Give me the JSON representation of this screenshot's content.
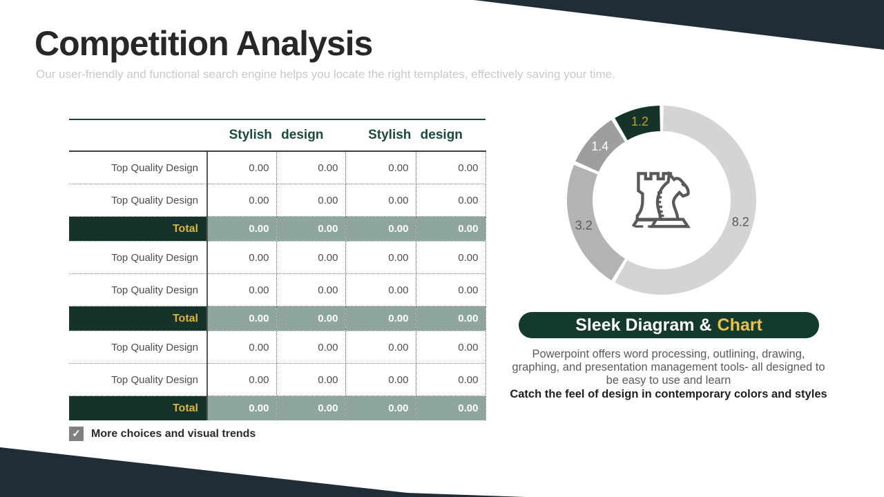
{
  "slide": {
    "title": "Competition Analysis",
    "subtitle": "Our user-friendly and functional search engine helps you locate the right templates, effectively saving your time."
  },
  "table": {
    "col_headers": [
      "Stylish design",
      "Stylish design"
    ],
    "rows": [
      {
        "type": "data",
        "label": "Top Quality Design",
        "values": [
          "0.00",
          "0.00",
          "0.00",
          "0.00"
        ]
      },
      {
        "type": "data",
        "label": "Top Quality Design",
        "values": [
          "0.00",
          "0.00",
          "0.00",
          "0.00"
        ]
      },
      {
        "type": "total",
        "label": "Total",
        "values": [
          "0.00",
          "0.00",
          "0.00",
          "0.00"
        ]
      },
      {
        "type": "data",
        "label": "Top Quality Design",
        "values": [
          "0.00",
          "0.00",
          "0.00",
          "0.00"
        ]
      },
      {
        "type": "data",
        "label": "Top Quality Design",
        "values": [
          "0.00",
          "0.00",
          "0.00",
          "0.00"
        ]
      },
      {
        "type": "total",
        "label": "Total",
        "values": [
          "0.00",
          "0.00",
          "0.00",
          "0.00"
        ]
      },
      {
        "type": "data",
        "label": "Top Quality Design",
        "values": [
          "0.00",
          "0.00",
          "0.00",
          "0.00"
        ]
      },
      {
        "type": "data",
        "label": "Top Quality Design",
        "values": [
          "0.00",
          "0.00",
          "0.00",
          "0.00"
        ]
      },
      {
        "type": "total",
        "label": "Total",
        "values": [
          "0.00",
          "0.00",
          "0.00",
          "0.00"
        ]
      }
    ]
  },
  "checkbox": {
    "checked": true,
    "check_icon": "✓",
    "label": "More choices and visual trends"
  },
  "chart_data": {
    "type": "pie",
    "subtype": "donut",
    "values": [
      8.2,
      3.2,
      1.4,
      1.2
    ],
    "labels": [
      "8.2",
      "3.2",
      "1.4",
      "1.2"
    ],
    "colors": [
      "#d4d4d4",
      "#b3b3b3",
      "#9e9e9e",
      "#16332b"
    ],
    "label_colors": [
      "#595959",
      "#595959",
      "#ffffff",
      "#bfa42e"
    ],
    "start_angle_deg": 0,
    "clockwise": true,
    "gap_deg": 2.4,
    "outer_radius": 137,
    "inner_radius": 100,
    "legend_position": "none",
    "center_icon": "chess-rook-and-knight-icon"
  },
  "callout": {
    "title_white": "Sleek Diagram &",
    "title_gold": "Chart",
    "body": "Powerpoint offers word processing, outlining, drawing, graphing, and presentation management tools- all designed to be easy to use and learn",
    "body_bold": "Catch the feel of design in contemporary colors and styles"
  },
  "colors": {
    "accent_dark_green": "#16332b",
    "accent_navy": "#1f2d37",
    "accent_gold": "#e9c148",
    "total_row_sage": "#8ea69e",
    "header_text_green": "#1b4a3c"
  }
}
